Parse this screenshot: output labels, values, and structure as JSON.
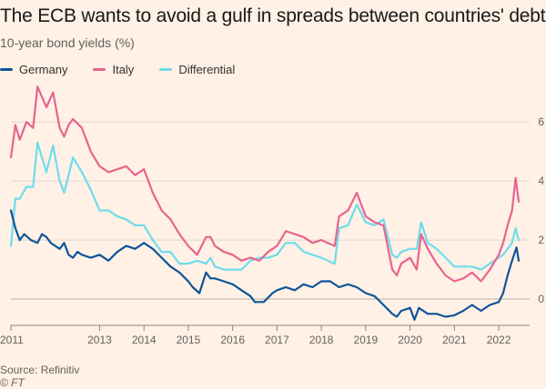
{
  "title": "The ECB wants to avoid a gulf in spreads between countries' debt",
  "subtitle": "10-year bond yields (%)",
  "source": "Source: Refinitiv",
  "credit": "© FT",
  "chart_data": {
    "type": "line",
    "title": "The ECB wants to avoid a gulf in spreads between countries' debt",
    "ylabel": "10-year bond yields (%)",
    "xlabel": "",
    "x_ticks": [
      "2011",
      "2013",
      "2014",
      "2015",
      "2016",
      "2017",
      "2018",
      "2019",
      "2020",
      "2021",
      "2022"
    ],
    "x_tick_years": [
      2011,
      2013,
      2014,
      2015,
      2016,
      2017,
      2018,
      2019,
      2020,
      2021,
      2022
    ],
    "y_ticks": [
      0,
      2,
      4,
      6
    ],
    "ylim": [
      -0.8,
      7.3
    ],
    "xlim": [
      2011.0,
      2022.45
    ],
    "grid": "horizontal",
    "legend_position": "top-left",
    "series": [
      {
        "name": "Germany",
        "color": "#0f5499",
        "x": [
          2011.0,
          2011.1,
          2011.2,
          2011.3,
          2011.45,
          2011.6,
          2011.7,
          2011.8,
          2011.9,
          2012.0,
          2012.1,
          2012.2,
          2012.3,
          2012.4,
          2012.5,
          2012.6,
          2012.8,
          2013.0,
          2013.2,
          2013.4,
          2013.6,
          2013.8,
          2014.0,
          2014.2,
          2014.4,
          2014.6,
          2014.8,
          2015.0,
          2015.1,
          2015.25,
          2015.4,
          2015.5,
          2015.6,
          2015.8,
          2016.0,
          2016.2,
          2016.4,
          2016.5,
          2016.7,
          2016.9,
          2017.0,
          2017.2,
          2017.4,
          2017.6,
          2017.8,
          2018.0,
          2018.2,
          2018.4,
          2018.6,
          2018.8,
          2019.0,
          2019.2,
          2019.4,
          2019.6,
          2019.7,
          2019.8,
          2020.0,
          2020.1,
          2020.2,
          2020.4,
          2020.6,
          2020.8,
          2021.0,
          2021.2,
          2021.4,
          2021.6,
          2021.8,
          2022.0,
          2022.1,
          2022.2,
          2022.3,
          2022.4,
          2022.45
        ],
        "values": [
          3.0,
          2.4,
          2.0,
          2.2,
          2.0,
          1.9,
          2.2,
          2.1,
          1.9,
          1.8,
          1.7,
          1.9,
          1.5,
          1.4,
          1.6,
          1.5,
          1.4,
          1.5,
          1.3,
          1.6,
          1.8,
          1.7,
          1.9,
          1.7,
          1.4,
          1.1,
          0.9,
          0.6,
          0.4,
          0.2,
          0.9,
          0.7,
          0.7,
          0.6,
          0.5,
          0.3,
          0.1,
          -0.1,
          -0.1,
          0.2,
          0.3,
          0.4,
          0.3,
          0.5,
          0.4,
          0.6,
          0.6,
          0.4,
          0.5,
          0.4,
          0.2,
          0.1,
          -0.2,
          -0.5,
          -0.6,
          -0.4,
          -0.3,
          -0.7,
          -0.3,
          -0.5,
          -0.5,
          -0.6,
          -0.55,
          -0.4,
          -0.2,
          -0.4,
          -0.2,
          -0.1,
          0.2,
          0.8,
          1.3,
          1.75,
          1.3
        ]
      },
      {
        "name": "Italy",
        "color": "#e8638f",
        "x": [
          2011.0,
          2011.1,
          2011.2,
          2011.35,
          2011.5,
          2011.6,
          2011.8,
          2011.95,
          2012.1,
          2012.2,
          2012.3,
          2012.4,
          2012.6,
          2012.8,
          2013.0,
          2013.2,
          2013.4,
          2013.6,
          2013.8,
          2014.0,
          2014.2,
          2014.4,
          2014.6,
          2014.8,
          2015.0,
          2015.2,
          2015.4,
          2015.5,
          2015.6,
          2015.8,
          2016.0,
          2016.2,
          2016.4,
          2016.6,
          2016.8,
          2017.0,
          2017.2,
          2017.4,
          2017.6,
          2017.8,
          2018.0,
          2018.3,
          2018.4,
          2018.6,
          2018.8,
          2019.0,
          2019.2,
          2019.4,
          2019.6,
          2019.7,
          2019.8,
          2020.0,
          2020.15,
          2020.25,
          2020.4,
          2020.6,
          2020.8,
          2021.0,
          2021.2,
          2021.4,
          2021.6,
          2021.8,
          2022.0,
          2022.1,
          2022.2,
          2022.3,
          2022.38,
          2022.45
        ],
        "values": [
          4.8,
          5.9,
          5.4,
          6.0,
          5.8,
          7.2,
          6.5,
          7.0,
          5.8,
          5.5,
          5.9,
          6.1,
          5.8,
          5.0,
          4.5,
          4.3,
          4.4,
          4.5,
          4.2,
          4.4,
          3.6,
          3.0,
          2.7,
          2.2,
          1.8,
          1.5,
          2.1,
          2.1,
          1.8,
          1.6,
          1.5,
          1.3,
          1.4,
          1.3,
          1.6,
          1.8,
          2.3,
          2.2,
          2.1,
          1.9,
          2.0,
          1.8,
          2.8,
          3.0,
          3.6,
          2.8,
          2.6,
          2.5,
          1.0,
          0.8,
          1.2,
          1.4,
          1.0,
          2.2,
          1.7,
          1.2,
          0.8,
          0.6,
          0.7,
          0.9,
          0.6,
          1.0,
          1.5,
          1.9,
          2.5,
          3.0,
          4.1,
          3.3
        ]
      },
      {
        "name": "Differential",
        "color": "#6fdcec",
        "x": [
          2011.0,
          2011.1,
          2011.2,
          2011.35,
          2011.5,
          2011.6,
          2011.8,
          2011.95,
          2012.1,
          2012.2,
          2012.3,
          2012.4,
          2012.6,
          2012.8,
          2013.0,
          2013.2,
          2013.4,
          2013.6,
          2013.8,
          2014.0,
          2014.2,
          2014.4,
          2014.6,
          2014.8,
          2015.0,
          2015.2,
          2015.4,
          2015.5,
          2015.6,
          2015.8,
          2016.0,
          2016.2,
          2016.4,
          2016.6,
          2016.8,
          2017.0,
          2017.2,
          2017.4,
          2017.6,
          2017.8,
          2018.0,
          2018.3,
          2018.4,
          2018.6,
          2018.8,
          2019.0,
          2019.2,
          2019.4,
          2019.6,
          2019.7,
          2019.8,
          2020.0,
          2020.15,
          2020.25,
          2020.4,
          2020.6,
          2020.8,
          2021.0,
          2021.2,
          2021.4,
          2021.6,
          2021.8,
          2022.0,
          2022.1,
          2022.2,
          2022.3,
          2022.38,
          2022.45
        ],
        "values": [
          1.8,
          3.4,
          3.4,
          3.8,
          3.8,
          5.3,
          4.3,
          5.2,
          4.0,
          3.6,
          4.2,
          4.8,
          4.3,
          3.7,
          3.0,
          3.0,
          2.8,
          2.7,
          2.5,
          2.5,
          2.0,
          1.6,
          1.6,
          1.2,
          1.2,
          1.3,
          1.2,
          1.4,
          1.1,
          1.0,
          1.0,
          1.0,
          1.3,
          1.4,
          1.4,
          1.5,
          1.9,
          1.9,
          1.6,
          1.5,
          1.4,
          1.2,
          2.4,
          2.5,
          3.2,
          2.6,
          2.5,
          2.7,
          1.5,
          1.4,
          1.6,
          1.7,
          1.7,
          2.6,
          1.9,
          1.7,
          1.4,
          1.1,
          1.1,
          1.1,
          1.0,
          1.2,
          1.4,
          1.5,
          1.7,
          1.9,
          2.4,
          2.0
        ]
      }
    ]
  }
}
